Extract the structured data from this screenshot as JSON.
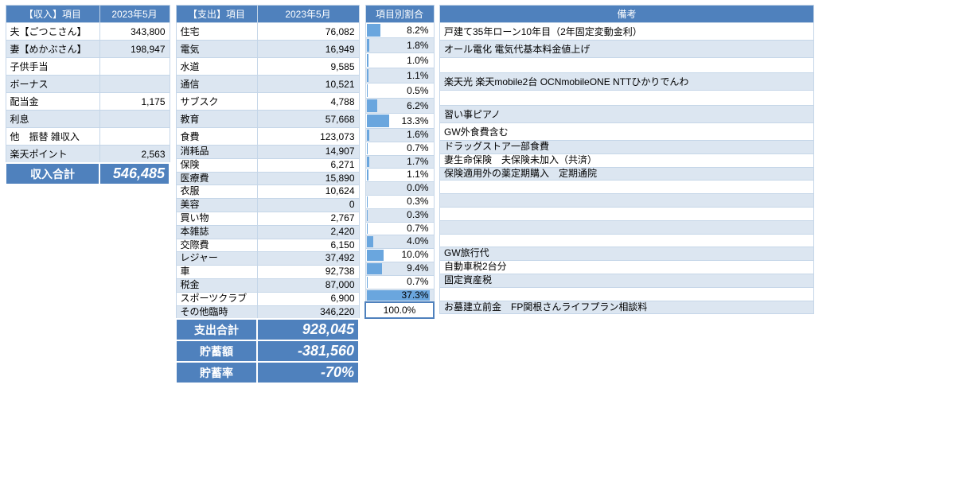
{
  "colors": {
    "header_bg": "#4f81bd",
    "header_fg": "#ffffff",
    "row_even": "#ffffff",
    "row_odd": "#dce6f1",
    "border": "#c5d6e8",
    "bar": "#6aa6de"
  },
  "income": {
    "header_item": "【収入】項目",
    "header_month": "2023年5月",
    "rows": [
      {
        "label": "夫【ごつこさん】",
        "value": "343,800"
      },
      {
        "label": "妻【めかぶさん】",
        "value": "198,947"
      },
      {
        "label": "子供手当",
        "value": ""
      },
      {
        "label": "ボーナス",
        "value": ""
      },
      {
        "label": "配当金",
        "value": "1,175"
      },
      {
        "label": "利息",
        "value": ""
      },
      {
        "label": "他　振替 雑収入",
        "value": ""
      },
      {
        "label": "楽天ポイント",
        "value": "2,563"
      }
    ],
    "total_label": "収入合計",
    "total_value": "546,485"
  },
  "expense": {
    "header_item": "【支出】項目",
    "header_month": "2023年5月",
    "rows": [
      {
        "label": "住宅",
        "value": "76,082",
        "tight": false
      },
      {
        "label": "電気",
        "value": "16,949",
        "tight": false
      },
      {
        "label": "水道",
        "value": "9,585",
        "tight": false
      },
      {
        "label": "通信",
        "value": "10,521",
        "tight": false
      },
      {
        "label": "サブスク",
        "value": "4,788",
        "tight": false
      },
      {
        "label": "教育",
        "value": "57,668",
        "tight": false
      },
      {
        "label": "食費",
        "value": "123,073",
        "tight": false
      },
      {
        "label": "消耗品",
        "value": "14,907",
        "tight": true
      },
      {
        "label": "保険",
        "value": "6,271",
        "tight": true
      },
      {
        "label": "医療費",
        "value": "15,890",
        "tight": true
      },
      {
        "label": "衣服",
        "value": "10,624",
        "tight": true
      },
      {
        "label": "美容",
        "value": "0",
        "tight": true
      },
      {
        "label": "買い物",
        "value": "2,767",
        "tight": true
      },
      {
        "label": "本雑誌",
        "value": "2,420",
        "tight": true
      },
      {
        "label": "交際費",
        "value": "6,150",
        "tight": true
      },
      {
        "label": "レジャー",
        "value": "37,492",
        "tight": true
      },
      {
        "label": "車",
        "value": "92,738",
        "tight": true
      },
      {
        "label": "税金",
        "value": "87,000",
        "tight": true
      },
      {
        "label": "スポーツクラブ",
        "value": "6,900",
        "tight": true
      },
      {
        "label": "その他臨時",
        "value": "346,220",
        "tight": true
      }
    ],
    "summary": [
      {
        "label": "支出合計",
        "value": "928,045"
      },
      {
        "label": "貯蓄額",
        "value": "-381,560"
      },
      {
        "label": "貯蓄率",
        "value": "-70%"
      }
    ]
  },
  "ratio": {
    "header": "項目別割合",
    "rows": [
      {
        "pct": "8.2%",
        "bar": 8.2
      },
      {
        "pct": "1.8%",
        "bar": 1.8
      },
      {
        "pct": "1.0%",
        "bar": 1.0
      },
      {
        "pct": "1.1%",
        "bar": 1.1
      },
      {
        "pct": "0.5%",
        "bar": 0.5
      },
      {
        "pct": "6.2%",
        "bar": 6.2
      },
      {
        "pct": "13.3%",
        "bar": 13.3
      },
      {
        "pct": "1.6%",
        "bar": 1.6
      },
      {
        "pct": "0.7%",
        "bar": 0.7
      },
      {
        "pct": "1.7%",
        "bar": 1.7
      },
      {
        "pct": "1.1%",
        "bar": 1.1
      },
      {
        "pct": "0.0%",
        "bar": 0.0
      },
      {
        "pct": "0.3%",
        "bar": 0.3
      },
      {
        "pct": "0.3%",
        "bar": 0.3
      },
      {
        "pct": "0.7%",
        "bar": 0.7
      },
      {
        "pct": "4.0%",
        "bar": 4.0
      },
      {
        "pct": "10.0%",
        "bar": 10.0
      },
      {
        "pct": "9.4%",
        "bar": 9.4
      },
      {
        "pct": "0.7%",
        "bar": 0.7
      },
      {
        "pct": "37.3%",
        "bar": 37.3
      }
    ],
    "bar_max": 40,
    "total": "100.0%"
  },
  "notes": {
    "header": "備考",
    "rows": [
      "戸建て35年ローン10年目（2年固定変動金利）",
      "オール電化 電気代基本料金値上げ",
      "",
      "楽天光 楽天mobile2台 OCNmobileONE NTTひかりでんわ",
      "",
      "習い事ピアノ",
      "GW外食費含む",
      "ドラッグストア一部食費",
      "妻生命保険　夫保険未加入（共済）",
      "保険適用外の薬定期購入　定期通院",
      "",
      "",
      "",
      "",
      "",
      "GW旅行代",
      "自動車税2台分",
      "固定資産税",
      "",
      "お墓建立前金　FP関根さんライフプラン相談料"
    ]
  }
}
